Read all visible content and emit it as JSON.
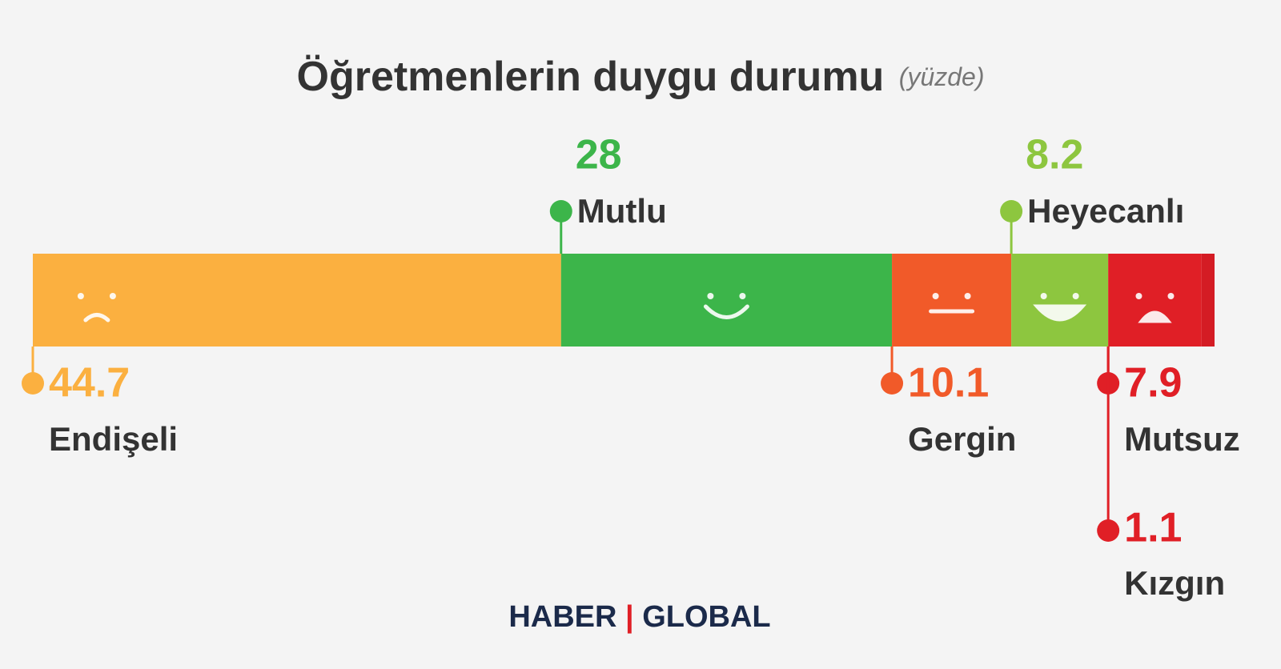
{
  "chart_data": {
    "type": "bar",
    "orientation": "horizontal",
    "stacked": true,
    "title": "Öğretmenlerin duygu durumu",
    "subtitle": "(yüzde)",
    "categories": [
      "Endişeli",
      "Mutlu",
      "Gergin",
      "Heyecanlı",
      "Mutsuz",
      "Kızgın"
    ],
    "values": [
      44.7,
      28,
      10.1,
      8.2,
      7.9,
      1.1
    ],
    "colors": [
      "#fbb040",
      "#3cb54a",
      "#f15a29",
      "#8dc63f",
      "#e01f26",
      "#d41c24"
    ],
    "xlim": [
      0,
      100
    ]
  },
  "logo": {
    "left": "HABER",
    "right": "GLOBAL"
  }
}
